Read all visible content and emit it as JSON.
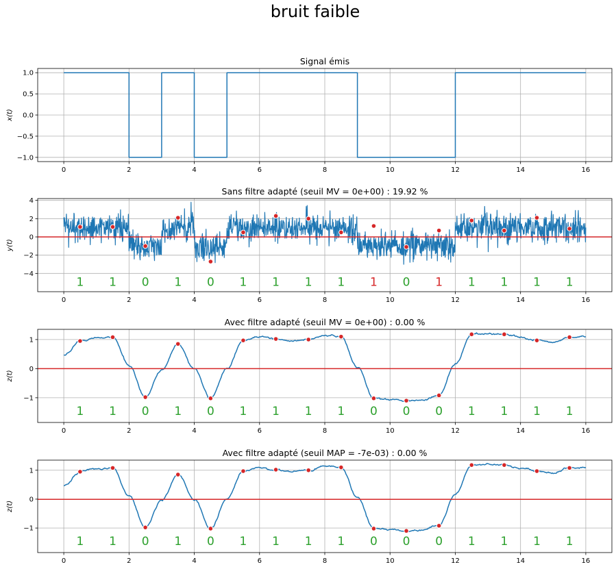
{
  "figure": {
    "suptitle": "bruit faible"
  },
  "colors": {
    "signal": "#1f77b4",
    "threshold": "#d62728",
    "marker": "#d62728",
    "bit_ok": "#2ca02c",
    "bit_err": "#d62728",
    "grid": "#b0b0b0"
  },
  "chart_data": [
    {
      "type": "line",
      "title": "Signal émis",
      "ylabel": "x(t)",
      "xlim": [
        -0.8,
        16.8
      ],
      "ylim": [
        -1.1,
        1.1
      ],
      "xticks": [
        "0",
        "2",
        "4",
        "6",
        "8",
        "10",
        "12",
        "14",
        "16"
      ],
      "yticks": [
        "1.0",
        "0.5",
        "0.0",
        "−0.5",
        "−1.0"
      ],
      "grid": true,
      "series": [
        {
          "x": [
            0,
            2,
            2,
            3,
            3,
            4,
            4,
            5,
            5,
            9,
            9,
            12,
            12,
            16
          ],
          "y": [
            1,
            1,
            -1,
            -1,
            1,
            1,
            -1,
            -1,
            1,
            1,
            -1,
            -1,
            1,
            1
          ]
        }
      ]
    },
    {
      "type": "line",
      "title": "Sans filtre adapté (seuil MV = 0e+00) : 19.92 %",
      "ylabel": "y(t)",
      "xlim": [
        -0.8,
        16.8
      ],
      "ylim": [
        -6,
        4.2
      ],
      "xticks": [
        "0",
        "2",
        "4",
        "6",
        "8",
        "10",
        "12",
        "14",
        "16"
      ],
      "yticks": [
        "4",
        "2",
        "0",
        "−2",
        "−4"
      ],
      "grid": true,
      "threshold": 0,
      "signal_levels": [
        1,
        1,
        -1,
        1,
        -1,
        1,
        1,
        1,
        1,
        -1,
        -1,
        -1,
        1,
        1,
        1,
        1
      ],
      "noise_amplitude": 0.8,
      "sample_times": [
        0.5,
        1.5,
        2.5,
        3.5,
        4.5,
        5.5,
        6.5,
        7.5,
        8.5,
        9.5,
        10.5,
        11.5,
        12.5,
        13.5,
        14.5,
        15.5
      ],
      "sample_values": [
        1.1,
        1.1,
        -1.0,
        2.1,
        -2.7,
        0.5,
        2.3,
        2.0,
        0.5,
        1.2,
        -1.1,
        0.7,
        1.8,
        0.7,
        2.1,
        0.9
      ],
      "decoded_bits": [
        "1",
        "1",
        "0",
        "1",
        "0",
        "1",
        "1",
        "1",
        "1",
        "1",
        "0",
        "1",
        "1",
        "1",
        "1",
        "1"
      ],
      "bit_errors": [
        false,
        false,
        false,
        false,
        false,
        false,
        false,
        false,
        false,
        true,
        false,
        true,
        false,
        false,
        false,
        false
      ],
      "bits_y": -4.9
    },
    {
      "type": "line",
      "title": "Avec filtre adapté (seuil MV = 0e+00) : 0.00 %",
      "ylabel": "z(t)",
      "xlim": [
        -0.8,
        16.8
      ],
      "ylim": [
        -1.85,
        1.35
      ],
      "xticks": [
        "0",
        "2",
        "4",
        "6",
        "8",
        "10",
        "12",
        "14",
        "16"
      ],
      "yticks": [
        "1",
        "0",
        "−1"
      ],
      "grid": true,
      "threshold": 0,
      "series": [
        {
          "x": [
            0,
            0.5,
            1.0,
            1.5,
            2.0,
            2.5,
            3.0,
            3.5,
            4.0,
            4.5,
            5.0,
            5.5,
            6.0,
            6.5,
            7.0,
            7.5,
            8.0,
            8.5,
            9.0,
            9.5,
            10.0,
            10.5,
            11.0,
            11.5,
            12.0,
            12.5,
            13.0,
            13.5,
            14.0,
            14.5,
            15.0,
            15.5,
            16.0
          ],
          "y": [
            0.45,
            0.95,
            1.05,
            1.08,
            0.1,
            -0.98,
            -0.05,
            0.85,
            0.0,
            -1.02,
            0.0,
            0.97,
            1.1,
            1.02,
            0.95,
            1.0,
            1.15,
            1.1,
            0.05,
            -1.02,
            -1.05,
            -1.1,
            -1.08,
            -0.92,
            0.15,
            1.18,
            1.2,
            1.18,
            1.08,
            0.97,
            0.9,
            1.08,
            1.1
          ]
        }
      ],
      "sample_times": [
        0.5,
        1.5,
        2.5,
        3.5,
        4.5,
        5.5,
        6.5,
        7.5,
        8.5,
        9.5,
        10.5,
        11.5,
        12.5,
        13.5,
        14.5,
        15.5
      ],
      "sample_values": [
        0.95,
        1.08,
        -0.98,
        0.85,
        -1.02,
        0.97,
        1.02,
        1.0,
        1.1,
        -1.02,
        -1.1,
        -0.92,
        1.18,
        1.18,
        0.97,
        1.08
      ],
      "decoded_bits": [
        "1",
        "1",
        "0",
        "1",
        "0",
        "1",
        "1",
        "1",
        "1",
        "0",
        "0",
        "0",
        "1",
        "1",
        "1",
        "1"
      ],
      "bit_errors": [
        false,
        false,
        false,
        false,
        false,
        false,
        false,
        false,
        false,
        false,
        false,
        false,
        false,
        false,
        false,
        false
      ],
      "bits_y": -1.45
    },
    {
      "type": "line",
      "title": "Avec filtre adapté (seuil MAP = -7e-03) : 0.00 %",
      "ylabel": "z(t)",
      "xlim": [
        -0.8,
        16.8
      ],
      "ylim": [
        -1.85,
        1.35
      ],
      "xticks": [
        "0",
        "2",
        "4",
        "6",
        "8",
        "10",
        "12",
        "14",
        "16"
      ],
      "yticks": [
        "1",
        "0",
        "−1"
      ],
      "grid": true,
      "threshold": -0.007,
      "series": [
        {
          "x": [
            0,
            0.5,
            1.0,
            1.5,
            2.0,
            2.5,
            3.0,
            3.5,
            4.0,
            4.5,
            5.0,
            5.5,
            6.0,
            6.5,
            7.0,
            7.5,
            8.0,
            8.5,
            9.0,
            9.5,
            10.0,
            10.5,
            11.0,
            11.5,
            12.0,
            12.5,
            13.0,
            13.5,
            14.0,
            14.5,
            15.0,
            15.5,
            16.0
          ],
          "y": [
            0.45,
            0.95,
            1.05,
            1.08,
            0.1,
            -0.98,
            -0.05,
            0.85,
            0.0,
            -1.02,
            0.0,
            0.97,
            1.1,
            1.02,
            0.95,
            1.0,
            1.15,
            1.1,
            0.05,
            -1.02,
            -1.05,
            -1.1,
            -1.08,
            -0.92,
            0.15,
            1.18,
            1.2,
            1.18,
            1.08,
            0.97,
            0.9,
            1.08,
            1.1
          ]
        }
      ],
      "sample_times": [
        0.5,
        1.5,
        2.5,
        3.5,
        4.5,
        5.5,
        6.5,
        7.5,
        8.5,
        9.5,
        10.5,
        11.5,
        12.5,
        13.5,
        14.5,
        15.5
      ],
      "sample_values": [
        0.95,
        1.08,
        -0.98,
        0.85,
        -1.02,
        0.97,
        1.02,
        1.0,
        1.1,
        -1.02,
        -1.1,
        -0.92,
        1.18,
        1.18,
        0.97,
        1.08
      ],
      "decoded_bits": [
        "1",
        "1",
        "0",
        "1",
        "0",
        "1",
        "1",
        "1",
        "1",
        "0",
        "0",
        "0",
        "1",
        "1",
        "1",
        "1"
      ],
      "bit_errors": [
        false,
        false,
        false,
        false,
        false,
        false,
        false,
        false,
        false,
        false,
        false,
        false,
        false,
        false,
        false,
        false
      ],
      "bits_y": -1.45
    }
  ]
}
